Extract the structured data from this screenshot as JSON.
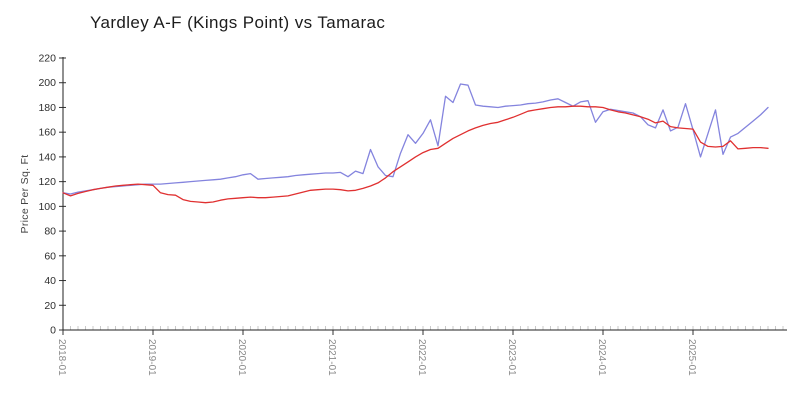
{
  "chart_data": {
    "type": "line",
    "title": "Yardley A-F (Kings Point) vs Tamarac",
    "xlabel": "",
    "ylabel": "Price Per Sq. Ft",
    "ylim": [
      0,
      220
    ],
    "yticks": [
      0,
      20,
      40,
      60,
      80,
      100,
      120,
      140,
      160,
      180,
      200,
      220
    ],
    "xticks": [
      "2018-01",
      "2019-01",
      "2020-01",
      "2021-01",
      "2022-01",
      "2023-01",
      "2024-01",
      "2025-01"
    ],
    "grid": false,
    "legend_position": "none",
    "x": [
      "2018-01",
      "2018-02",
      "2018-03",
      "2018-04",
      "2018-05",
      "2018-06",
      "2018-07",
      "2018-08",
      "2018-09",
      "2018-10",
      "2018-11",
      "2018-12",
      "2019-01",
      "2019-02",
      "2019-03",
      "2019-04",
      "2019-05",
      "2019-06",
      "2019-07",
      "2019-08",
      "2019-09",
      "2019-10",
      "2019-11",
      "2019-12",
      "2020-01",
      "2020-02",
      "2020-03",
      "2020-04",
      "2020-05",
      "2020-06",
      "2020-07",
      "2020-08",
      "2020-09",
      "2020-10",
      "2020-11",
      "2020-12",
      "2021-01",
      "2021-02",
      "2021-03",
      "2021-04",
      "2021-05",
      "2021-06",
      "2021-07",
      "2021-08",
      "2021-09",
      "2021-10",
      "2021-11",
      "2021-12",
      "2022-01",
      "2022-02",
      "2022-03",
      "2022-04",
      "2022-05",
      "2022-06",
      "2022-07",
      "2022-08",
      "2022-09",
      "2022-10",
      "2022-11",
      "2022-12",
      "2023-01",
      "2023-02",
      "2023-03",
      "2023-04",
      "2023-05",
      "2023-06",
      "2023-07",
      "2023-08",
      "2023-09",
      "2023-10",
      "2023-11",
      "2023-12",
      "2024-01",
      "2024-02",
      "2024-03",
      "2024-04",
      "2024-05",
      "2024-06",
      "2024-07",
      "2024-08",
      "2024-09",
      "2024-10",
      "2024-11",
      "2024-12",
      "2025-01",
      "2025-02",
      "2025-03",
      "2025-04",
      "2025-05",
      "2025-06",
      "2025-07",
      "2025-08",
      "2025-09",
      "2025-10",
      "2025-11"
    ],
    "series": [
      {
        "name": "Tamarac",
        "color": "#8484de",
        "values": [
          111,
          110,
          111.5,
          112.5,
          113.5,
          114.5,
          115.5,
          116,
          116.5,
          117,
          117.5,
          118,
          118,
          118,
          118.5,
          119,
          119.5,
          120,
          120.5,
          121,
          121.5,
          122,
          123,
          124,
          125.5,
          126.5,
          122,
          122.5,
          123,
          123.5,
          124,
          125,
          125.5,
          126,
          126.5,
          127,
          127,
          127.5,
          124,
          128.5,
          126.5,
          146,
          132,
          125,
          124,
          143,
          158,
          151,
          159,
          170,
          149,
          189,
          184,
          199,
          198,
          182,
          181,
          180.5,
          180,
          181,
          181.5,
          182,
          183,
          183.5,
          184.5,
          186,
          187,
          184,
          181,
          184.5,
          185.5,
          168,
          176.5,
          178.5,
          177.5,
          176.5,
          175.5,
          172.5,
          166,
          163.5,
          178,
          161,
          164,
          183,
          162,
          140,
          159,
          178,
          142,
          156,
          159,
          164,
          169,
          174,
          180
        ]
      },
      {
        "name": "Yardley A-F (Kings Point)",
        "color": "#e03030",
        "values": [
          111,
          108.5,
          110.5,
          112,
          113.5,
          114.5,
          115.5,
          116.5,
          117,
          117.5,
          118,
          117.5,
          117,
          111,
          109.5,
          109,
          105.5,
          104,
          103.5,
          103,
          103.5,
          105,
          106,
          106.5,
          107,
          107.5,
          107,
          107,
          107.5,
          108,
          108.5,
          110,
          111.5,
          113,
          113.5,
          114,
          114,
          113.5,
          112.5,
          113,
          114.5,
          116.5,
          119,
          123,
          128,
          132,
          136,
          140,
          143.5,
          146,
          147,
          151,
          155,
          158,
          161,
          163.5,
          165.5,
          167,
          168,
          170,
          172,
          174.5,
          177,
          178,
          179,
          180,
          180.5,
          180.5,
          181,
          181,
          180.5,
          180.5,
          180,
          178,
          176.5,
          175.5,
          174,
          172.5,
          170.5,
          167.5,
          169,
          164.5,
          163.5,
          163,
          162.5,
          152,
          148.5,
          148,
          148.5,
          153,
          146.5,
          147,
          147.5,
          147.5,
          147
        ]
      }
    ],
    "style": {
      "axis_color": "#222222",
      "major_tick_color": "#333333",
      "minor_tick_color": "#c9c9c9",
      "background": "#ffffff"
    }
  }
}
